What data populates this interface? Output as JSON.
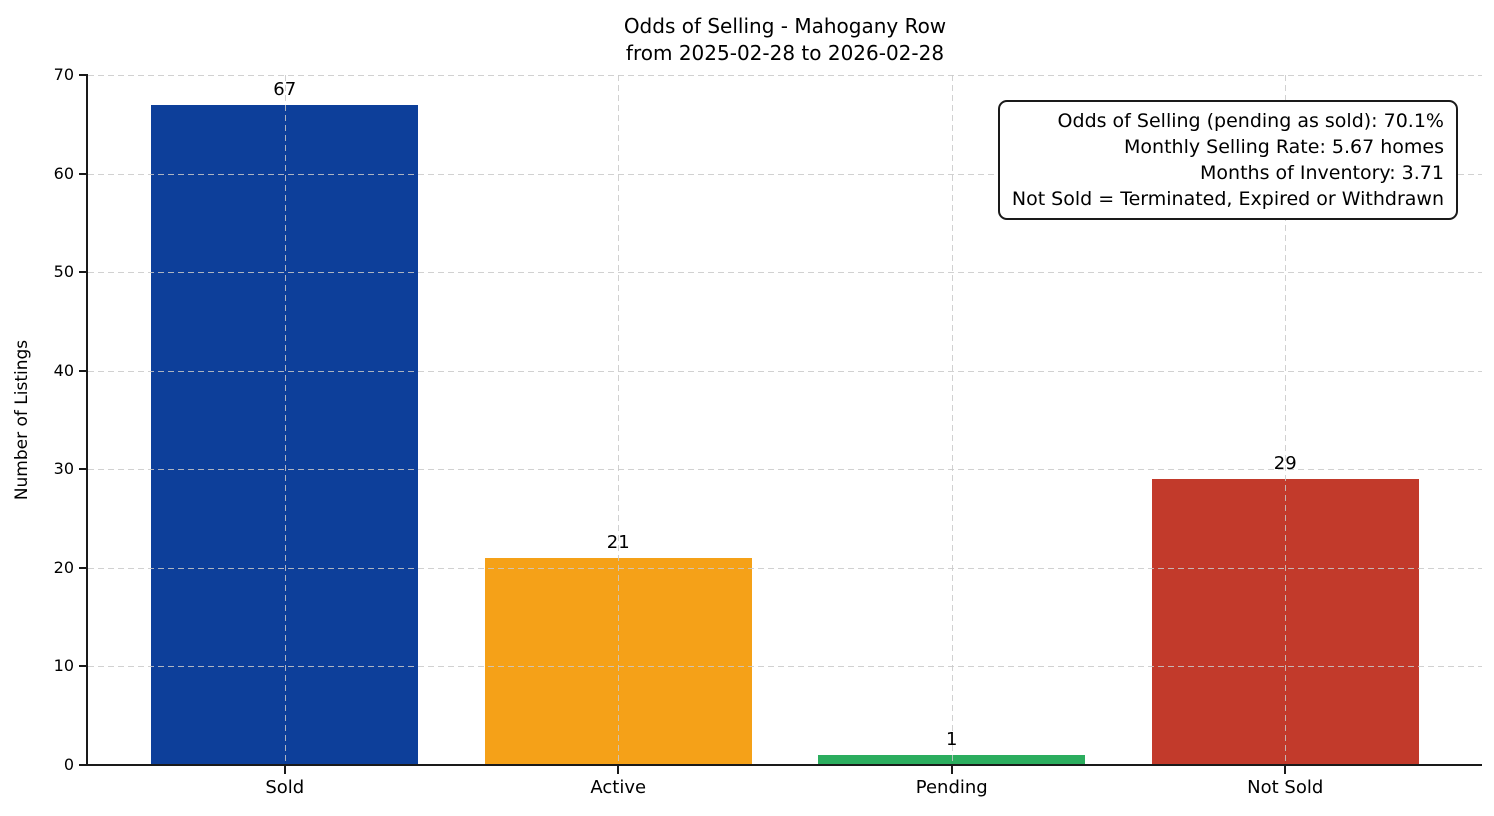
{
  "chart_data": {
    "type": "bar",
    "title": "Odds of Selling - Mahogany Row",
    "subtitle": "from 2025-02-28 to 2026-02-28",
    "ylabel": "Number of Listings",
    "xlabel": "",
    "categories": [
      "Sold",
      "Active",
      "Pending",
      "Not Sold"
    ],
    "values": [
      67,
      21,
      1,
      29
    ],
    "bar_colors": [
      "#0d3f9a",
      "#f5a118",
      "#2bad5e",
      "#c23a2b"
    ],
    "ylim": [
      0,
      70
    ],
    "yticks": [
      0,
      10,
      20,
      30,
      40,
      50,
      60,
      70
    ],
    "grid": "both, dashed, drawn over bars",
    "legend": "none",
    "annotation_box": {
      "position": "top-right",
      "lines": [
        "Odds of Selling (pending as sold): 70.1%",
        "Monthly Selling Rate: 5.67 homes",
        "Months of Inventory: 3.71",
        "Not Sold = Terminated, Expired or Withdrawn"
      ]
    }
  },
  "colors": {
    "background": "#ffffff",
    "axis": "#1a1a1a",
    "grid": "#c9c9c9",
    "text": "#000000"
  }
}
